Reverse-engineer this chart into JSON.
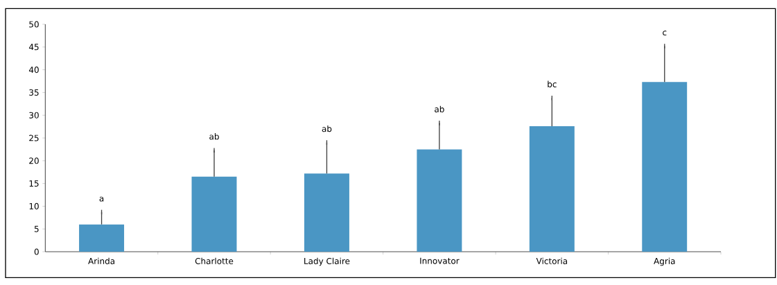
{
  "chart_data": {
    "type": "bar",
    "categories": [
      "Arinda",
      "Charlotte",
      "Lady Claire",
      "Innovator",
      "Victoria",
      "Agria"
    ],
    "values": [
      6,
      16.5,
      17.2,
      22.5,
      27.6,
      37.3
    ],
    "errors": [
      [
        6,
        8.7
      ],
      [
        16.5,
        22.3
      ],
      [
        17.2,
        24
      ],
      [
        22.5,
        28.3
      ],
      [
        27.6,
        33.8
      ],
      [
        37.3,
        45.2
      ]
    ],
    "color": "#4a96c4",
    "ylim": [
      0,
      50
    ],
    "yticks": [
      0,
      5,
      10,
      15,
      20,
      25,
      30,
      35,
      40,
      45,
      50
    ],
    "grid": false,
    "annotations": [
      "a",
      "ab",
      "ab",
      "ab",
      "bc",
      "c"
    ]
  }
}
